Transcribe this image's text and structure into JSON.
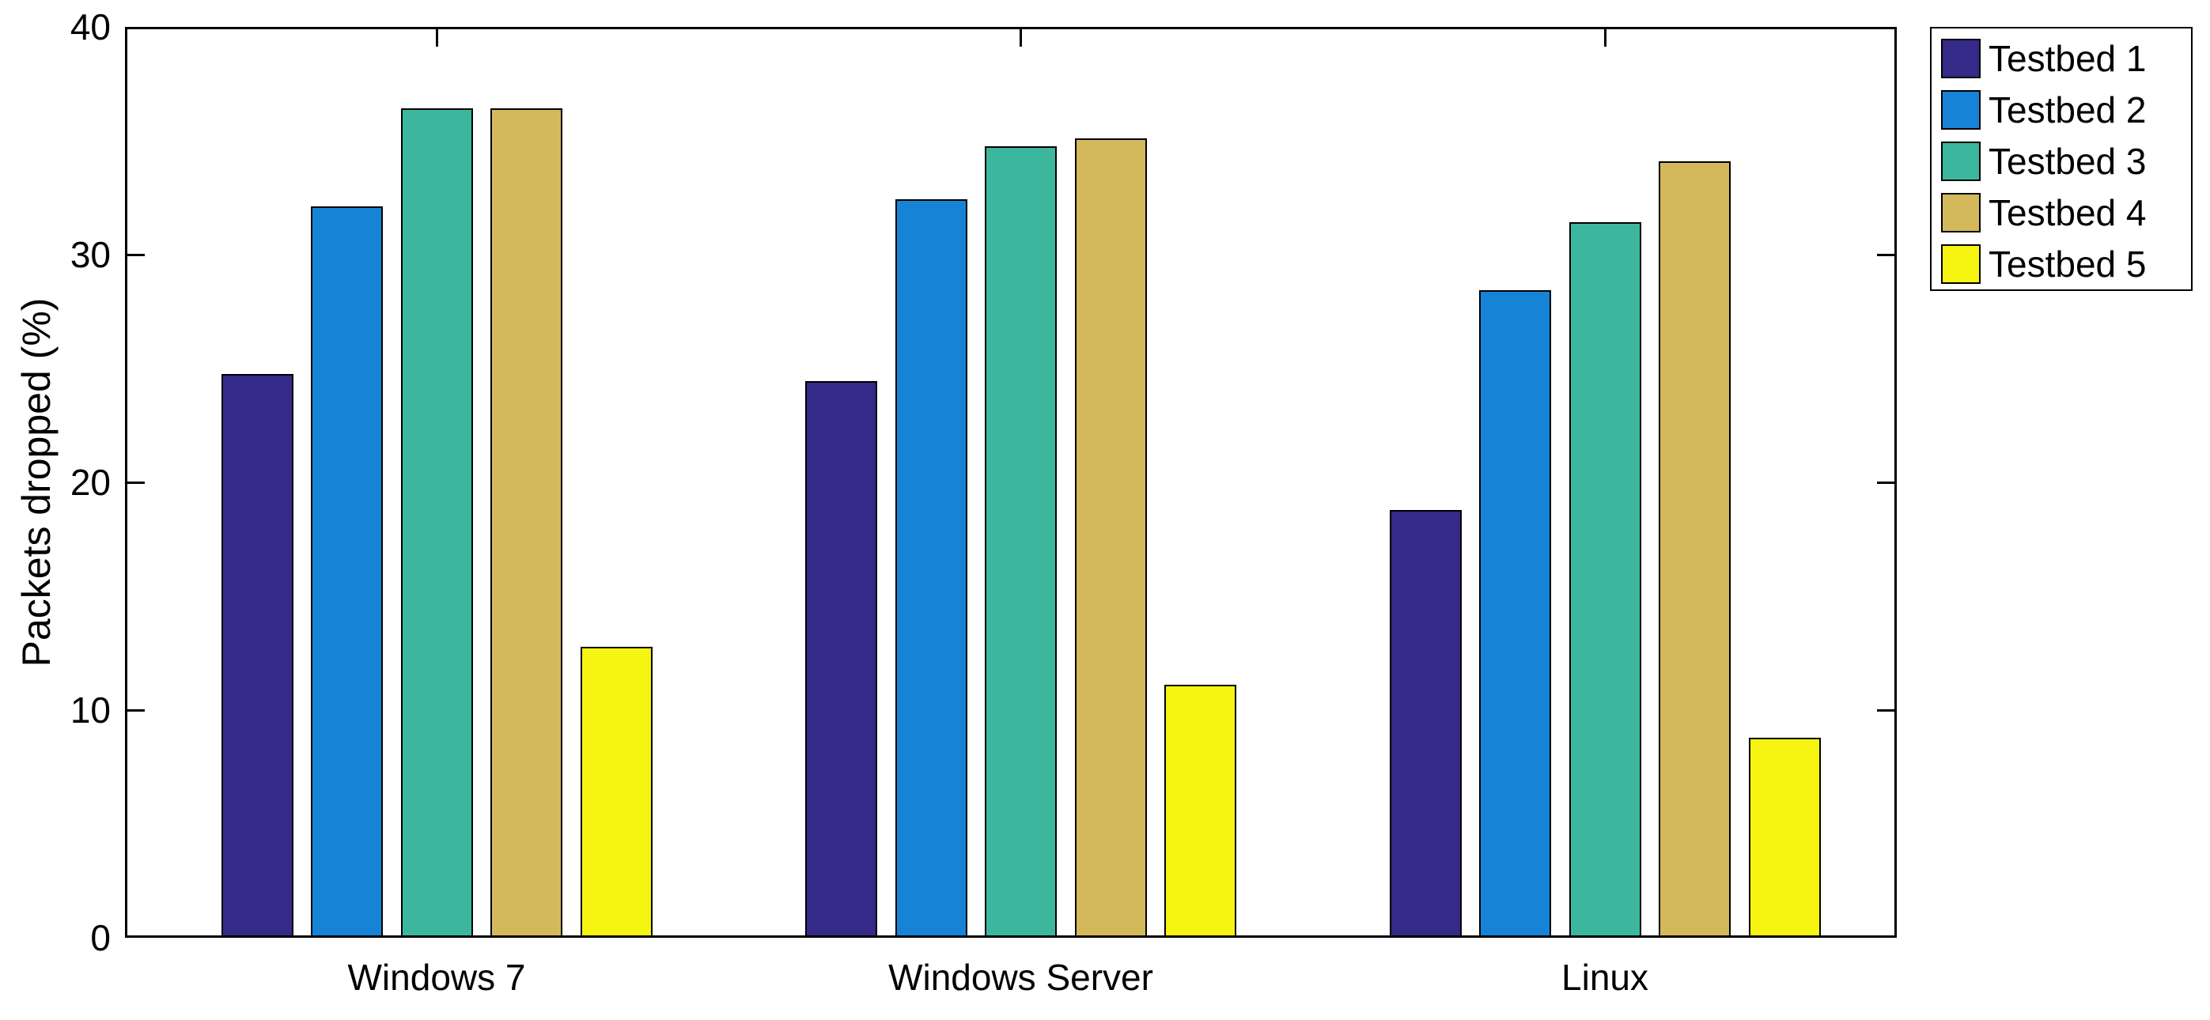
{
  "figure": {
    "background": "#ffffff",
    "axis_color": "#000000"
  },
  "y_axis": {
    "label": "Packets dropped (%)",
    "tick_labels": [
      "0",
      "10",
      "20",
      "30",
      "40"
    ],
    "min": 0,
    "max": 40
  },
  "x_axis": {
    "categories": [
      "Windows 7",
      "Windows Server",
      "Linux"
    ]
  },
  "legend": {
    "entries": [
      {
        "label": "Testbed 1",
        "color": "#352A87"
      },
      {
        "label": "Testbed 2",
        "color": "#1783D6"
      },
      {
        "label": "Testbed 3",
        "color": "#3CB79E"
      },
      {
        "label": "Testbed 4",
        "color": "#D4B95C"
      },
      {
        "label": "Testbed 5",
        "color": "#F5F511"
      }
    ]
  },
  "chart_data": {
    "type": "bar",
    "categories": [
      "Windows 7",
      "Windows Server",
      "Linux"
    ],
    "series": [
      {
        "name": "Testbed 1",
        "color": "#352A87",
        "values": [
          24.67,
          24.33,
          18.67
        ]
      },
      {
        "name": "Testbed 2",
        "color": "#1783D6",
        "values": [
          32.0,
          32.33,
          28.33
        ]
      },
      {
        "name": "Testbed 3",
        "color": "#3CB79E",
        "values": [
          36.33,
          34.67,
          31.33
        ]
      },
      {
        "name": "Testbed 4",
        "color": "#D4B95C",
        "values": [
          36.33,
          35.0,
          34.0
        ]
      },
      {
        "name": "Testbed 5",
        "color": "#F5F511",
        "values": [
          12.67,
          11.0,
          8.67
        ]
      }
    ],
    "title": "",
    "xlabel": "",
    "ylabel": "Packets dropped (%)",
    "ylim": [
      0,
      40
    ],
    "yticks": [
      0,
      10,
      20,
      30,
      40
    ],
    "grid": false,
    "legend_position": "outside upper right"
  }
}
